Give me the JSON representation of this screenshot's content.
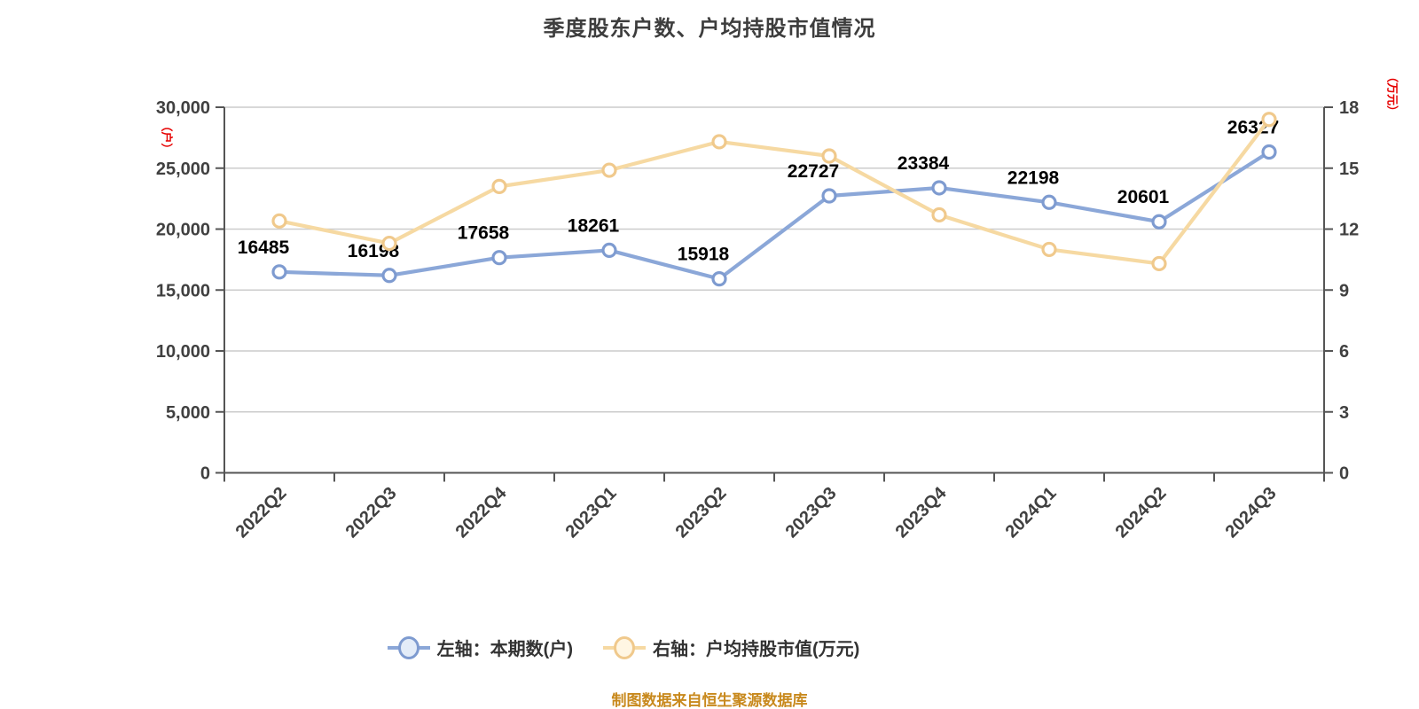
{
  "title": "季度股东户数、户均持股市值情况",
  "footer": "制图数据来自恒生聚源数据库",
  "axes": {
    "left": {
      "name": "（户）",
      "ticks": [
        "0",
        "5,000",
        "10,000",
        "15,000",
        "20,000",
        "25,000",
        "30,000"
      ]
    },
    "right": {
      "name": "（万元）",
      "ticks": [
        "0",
        "3",
        "6",
        "9",
        "12",
        "15",
        "18"
      ]
    }
  },
  "chart_data": {
    "type": "line",
    "title": "季度股东户数、户均持股市值情况",
    "categories": [
      "2022Q2",
      "2022Q3",
      "2022Q4",
      "2023Q1",
      "2023Q2",
      "2023Q3",
      "2023Q4",
      "2024Q1",
      "2024Q2",
      "2024Q3"
    ],
    "series": [
      {
        "name": "左轴：本期数(户)",
        "axis": "left",
        "color": "#8BA7D8",
        "marker_stroke": "#7E9BD0",
        "legend_fill": "#E3ECF8",
        "data_labels": true,
        "values": [
          16485,
          16198,
          17658,
          18261,
          15918,
          22727,
          23384,
          22198,
          20601,
          26327
        ]
      },
      {
        "name": "右轴：户均持股市值(万元)",
        "axis": "right",
        "color": "#F6D9A2",
        "marker_stroke": "#F0C98C",
        "legend_fill": "#FFF6E3",
        "data_labels": false,
        "values": [
          12.4,
          11.3,
          14.1,
          14.9,
          16.3,
          15.6,
          12.7,
          11.0,
          10.3,
          17.4
        ]
      }
    ],
    "left_ylim": [
      0,
      30000
    ],
    "right_ylim": [
      0,
      18
    ],
    "grid": true,
    "legend_position": "bottom",
    "x_label_rotation": -45
  },
  "colors": {
    "title": "#3D3D3D",
    "axis_line": "#555555",
    "grid_line": "#CCCCCC",
    "tick_text": "#404040",
    "data_label": "#000000",
    "axis_name_red": "#E60000",
    "footer": "#C8891D",
    "background": "#FFFFFF"
  }
}
